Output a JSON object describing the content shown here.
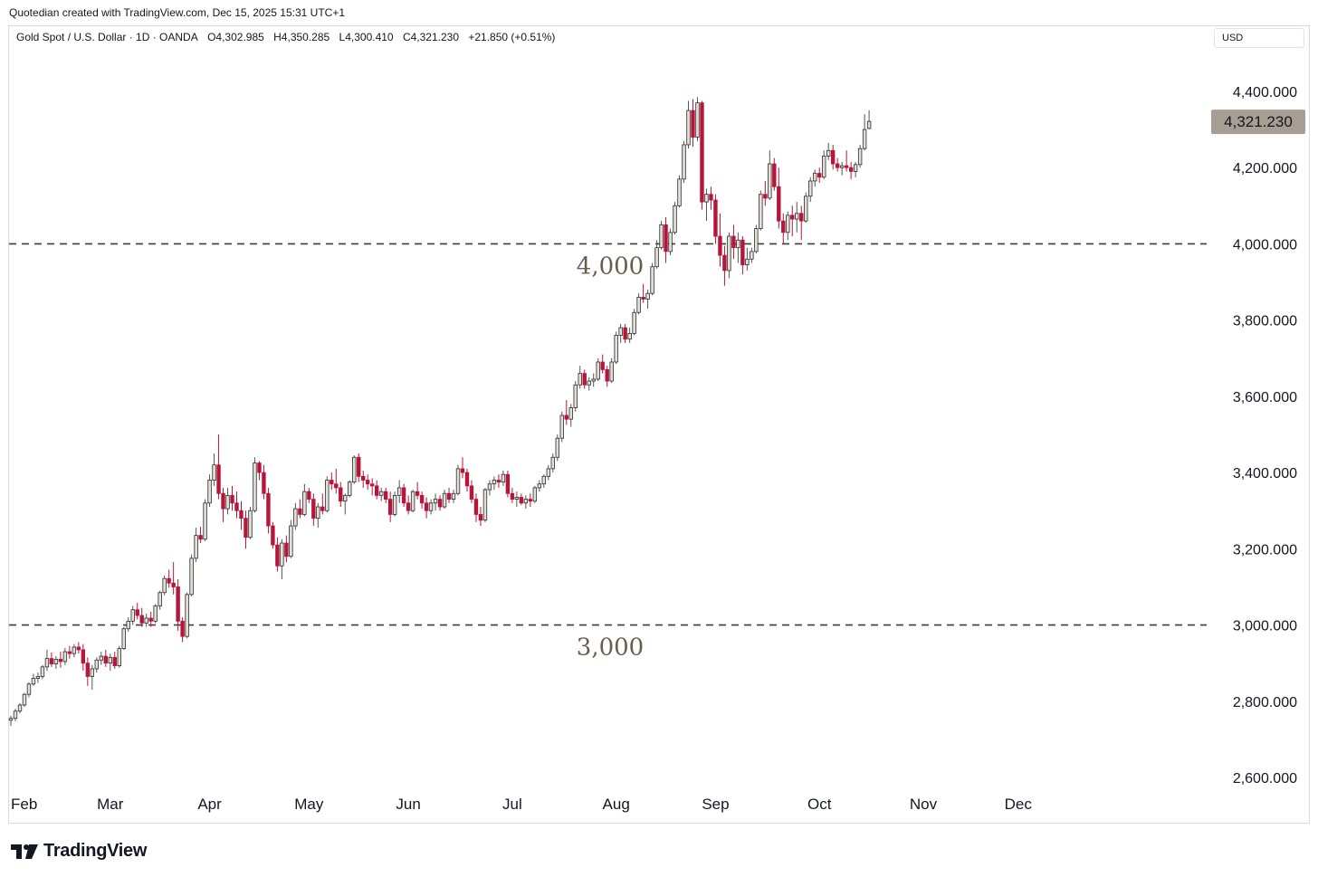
{
  "attribution": "Quotedian created with TradingView.com, Dec 15, 2025 15:31 UTC+1",
  "legend": {
    "symbol": "Gold Spot / U.S. Dollar · 1D · OANDA",
    "open": "O4,302.985",
    "high": "H4,350.285",
    "low": "L4,300.410",
    "close": "C4,321.230",
    "change": "+21.850 (+0.51%)"
  },
  "currency_label": "USD",
  "footer": {
    "brand": "TradingView",
    "logo_icon": "tradingview-logo-icon"
  },
  "colors": {
    "up_body": "#e4e0d8",
    "down_body": "#b8153a",
    "candle_border": "#2b2b2b",
    "level_line": "#3d3d3d",
    "level_text": "#6b5d4c",
    "price_badge": "#a79d92"
  },
  "chart_data": {
    "type": "candlestick",
    "title": "Gold Spot / U.S. Dollar",
    "ylim": [
      2550,
      4440
    ],
    "y_ticks": [
      "4,400.000",
      "4,200.000",
      "4,000.000",
      "3,800.000",
      "3,600.000",
      "3,400.000",
      "3,200.000",
      "3,000.000",
      "2,800.000",
      "2,600.000"
    ],
    "y_tick_values": [
      4400,
      4200,
      4000,
      3800,
      3600,
      3400,
      3200,
      3000,
      2800,
      2600
    ],
    "x_ticks": [
      "Feb",
      "Mar",
      "Apr",
      "May",
      "Jun",
      "Jul",
      "Aug",
      "Sep",
      "Oct",
      "Nov",
      "Dec"
    ],
    "x_tick_index": [
      2,
      22,
      44,
      66,
      88,
      111,
      134,
      156,
      179,
      202,
      223
    ],
    "levels": [
      {
        "value": 4000,
        "label": "4,000"
      },
      {
        "value": 3000,
        "label": "3,000"
      }
    ],
    "last_price": {
      "value": 4321.23,
      "label": "4,321.230"
    },
    "ohlc": [
      [
        2750,
        2762,
        2735,
        2755
      ],
      [
        2755,
        2780,
        2748,
        2774
      ],
      [
        2774,
        2795,
        2768,
        2790
      ],
      [
        2790,
        2822,
        2785,
        2818
      ],
      [
        2818,
        2850,
        2810,
        2845
      ],
      [
        2845,
        2872,
        2840,
        2860
      ],
      [
        2860,
        2875,
        2848,
        2865
      ],
      [
        2865,
        2895,
        2858,
        2890
      ],
      [
        2890,
        2935,
        2880,
        2912
      ],
      [
        2912,
        2928,
        2890,
        2898
      ],
      [
        2898,
        2918,
        2885,
        2910
      ],
      [
        2910,
        2930,
        2888,
        2904
      ],
      [
        2904,
        2940,
        2895,
        2930
      ],
      [
        2930,
        2945,
        2912,
        2925
      ],
      [
        2925,
        2950,
        2915,
        2942
      ],
      [
        2942,
        2955,
        2925,
        2935
      ],
      [
        2935,
        2950,
        2880,
        2900
      ],
      [
        2900,
        2915,
        2840,
        2865
      ],
      [
        2865,
        2895,
        2830,
        2885
      ],
      [
        2885,
        2915,
        2875,
        2908
      ],
      [
        2908,
        2930,
        2895,
        2918
      ],
      [
        2918,
        2935,
        2890,
        2900
      ],
      [
        2900,
        2925,
        2880,
        2915
      ],
      [
        2915,
        2930,
        2885,
        2893
      ],
      [
        2893,
        2945,
        2888,
        2938
      ],
      [
        2938,
        2995,
        2935,
        2990
      ],
      [
        2990,
        3020,
        2982,
        3010
      ],
      [
        3010,
        3050,
        3000,
        3040
      ],
      [
        3040,
        3058,
        3015,
        3025
      ],
      [
        3025,
        3045,
        2995,
        3005
      ],
      [
        3005,
        3030,
        2995,
        3018
      ],
      [
        3018,
        3035,
        2995,
        3010
      ],
      [
        3010,
        3055,
        3005,
        3050
      ],
      [
        3050,
        3090,
        3040,
        3085
      ],
      [
        3085,
        3130,
        3078,
        3122
      ],
      [
        3122,
        3145,
        3098,
        3110
      ],
      [
        3110,
        3165,
        3080,
        3100
      ],
      [
        3100,
        3120,
        2985,
        3010
      ],
      [
        3010,
        3020,
        2955,
        2970
      ],
      [
        2970,
        3085,
        2965,
        3080
      ],
      [
        3080,
        3185,
        3075,
        3175
      ],
      [
        3175,
        3255,
        3165,
        3235
      ],
      [
        3235,
        3258,
        3215,
        3225
      ],
      [
        3225,
        3330,
        3220,
        3320
      ],
      [
        3320,
        3395,
        3310,
        3380
      ],
      [
        3380,
        3450,
        3365,
        3420
      ],
      [
        3420,
        3500,
        3330,
        3345
      ],
      [
        3345,
        3360,
        3270,
        3305
      ],
      [
        3305,
        3360,
        3290,
        3340
      ],
      [
        3340,
        3365,
        3300,
        3320
      ],
      [
        3320,
        3350,
        3280,
        3300
      ],
      [
        3300,
        3325,
        3250,
        3280
      ],
      [
        3280,
        3300,
        3200,
        3230
      ],
      [
        3230,
        3310,
        3225,
        3300
      ],
      [
        3300,
        3440,
        3295,
        3425
      ],
      [
        3425,
        3430,
        3380,
        3400
      ],
      [
        3400,
        3420,
        3330,
        3345
      ],
      [
        3345,
        3360,
        3240,
        3260
      ],
      [
        3260,
        3270,
        3200,
        3210
      ],
      [
        3210,
        3230,
        3140,
        3155
      ],
      [
        3155,
        3225,
        3120,
        3215
      ],
      [
        3215,
        3235,
        3165,
        3180
      ],
      [
        3180,
        3275,
        3175,
        3260
      ],
      [
        3260,
        3320,
        3250,
        3305
      ],
      [
        3305,
        3330,
        3280,
        3290
      ],
      [
        3290,
        3370,
        3285,
        3350
      ],
      [
        3350,
        3360,
        3320,
        3330
      ],
      [
        3330,
        3345,
        3260,
        3280
      ],
      [
        3280,
        3320,
        3255,
        3310
      ],
      [
        3310,
        3345,
        3290,
        3300
      ],
      [
        3300,
        3390,
        3295,
        3380
      ],
      [
        3380,
        3400,
        3355,
        3370
      ],
      [
        3370,
        3410,
        3345,
        3360
      ],
      [
        3360,
        3375,
        3310,
        3325
      ],
      [
        3325,
        3345,
        3290,
        3340
      ],
      [
        3340,
        3380,
        3335,
        3375
      ],
      [
        3375,
        3445,
        3370,
        3440
      ],
      [
        3440,
        3450,
        3375,
        3390
      ],
      [
        3390,
        3405,
        3360,
        3380
      ],
      [
        3380,
        3395,
        3355,
        3370
      ],
      [
        3370,
        3385,
        3340,
        3365
      ],
      [
        3365,
        3380,
        3330,
        3340
      ],
      [
        3340,
        3360,
        3325,
        3350
      ],
      [
        3350,
        3360,
        3320,
        3330
      ],
      [
        3330,
        3350,
        3270,
        3290
      ],
      [
        3290,
        3350,
        3285,
        3340
      ],
      [
        3340,
        3380,
        3320,
        3360
      ],
      [
        3360,
        3370,
        3310,
        3320
      ],
      [
        3320,
        3340,
        3290,
        3300
      ],
      [
        3300,
        3355,
        3295,
        3350
      ],
      [
        3350,
        3375,
        3330,
        3340
      ],
      [
        3340,
        3350,
        3305,
        3320
      ],
      [
        3320,
        3335,
        3280,
        3300
      ],
      [
        3300,
        3330,
        3290,
        3320
      ],
      [
        3320,
        3345,
        3300,
        3330
      ],
      [
        3330,
        3340,
        3300,
        3310
      ],
      [
        3310,
        3355,
        3305,
        3345
      ],
      [
        3345,
        3360,
        3320,
        3330
      ],
      [
        3330,
        3355,
        3320,
        3345
      ],
      [
        3345,
        3420,
        3340,
        3410
      ],
      [
        3410,
        3440,
        3385,
        3400
      ],
      [
        3400,
        3410,
        3350,
        3365
      ],
      [
        3365,
        3380,
        3320,
        3330
      ],
      [
        3330,
        3345,
        3270,
        3290
      ],
      [
        3290,
        3310,
        3260,
        3275
      ],
      [
        3275,
        3360,
        3270,
        3355
      ],
      [
        3355,
        3380,
        3340,
        3370
      ],
      [
        3370,
        3390,
        3355,
        3380
      ],
      [
        3380,
        3395,
        3360,
        3375
      ],
      [
        3375,
        3405,
        3365,
        3395
      ],
      [
        3395,
        3405,
        3335,
        3345
      ],
      [
        3345,
        3360,
        3320,
        3330
      ],
      [
        3330,
        3350,
        3310,
        3335
      ],
      [
        3335,
        3345,
        3315,
        3320
      ],
      [
        3320,
        3340,
        3305,
        3330
      ],
      [
        3330,
        3345,
        3310,
        3325
      ],
      [
        3325,
        3365,
        3320,
        3360
      ],
      [
        3360,
        3380,
        3350,
        3370
      ],
      [
        3370,
        3395,
        3360,
        3390
      ],
      [
        3390,
        3420,
        3380,
        3410
      ],
      [
        3410,
        3450,
        3400,
        3440
      ],
      [
        3440,
        3500,
        3430,
        3490
      ],
      [
        3490,
        3560,
        3480,
        3550
      ],
      [
        3550,
        3590,
        3525,
        3540
      ],
      [
        3540,
        3580,
        3520,
        3570
      ],
      [
        3570,
        3640,
        3560,
        3630
      ],
      [
        3630,
        3680,
        3620,
        3660
      ],
      [
        3660,
        3670,
        3620,
        3630
      ],
      [
        3630,
        3650,
        3615,
        3640
      ],
      [
        3640,
        3660,
        3625,
        3645
      ],
      [
        3645,
        3700,
        3640,
        3690
      ],
      [
        3690,
        3710,
        3660,
        3670
      ],
      [
        3670,
        3680,
        3625,
        3640
      ],
      [
        3640,
        3700,
        3635,
        3690
      ],
      [
        3690,
        3770,
        3685,
        3760
      ],
      [
        3760,
        3790,
        3740,
        3780
      ],
      [
        3780,
        3790,
        3740,
        3750
      ],
      [
        3750,
        3780,
        3740,
        3765
      ],
      [
        3765,
        3830,
        3760,
        3820
      ],
      [
        3820,
        3870,
        3815,
        3860
      ],
      [
        3860,
        3895,
        3845,
        3855
      ],
      [
        3855,
        3880,
        3830,
        3870
      ],
      [
        3870,
        3950,
        3865,
        3940
      ],
      [
        3940,
        4010,
        3935,
        3990
      ],
      [
        3990,
        4060,
        3985,
        4050
      ],
      [
        4050,
        4070,
        3950,
        3980
      ],
      [
        3980,
        4040,
        3970,
        4030
      ],
      [
        4030,
        4110,
        4025,
        4100
      ],
      [
        4100,
        4180,
        4095,
        4170
      ],
      [
        4170,
        4270,
        4160,
        4260
      ],
      [
        4260,
        4375,
        4250,
        4350
      ],
      [
        4350,
        4380,
        4255,
        4280
      ],
      [
        4280,
        4385,
        4270,
        4370
      ],
      [
        4370,
        4375,
        4090,
        4110
      ],
      [
        4110,
        4145,
        4060,
        4130
      ],
      [
        4130,
        4150,
        4090,
        4115
      ],
      [
        4115,
        4130,
        4000,
        4020
      ],
      [
        4020,
        4080,
        3940,
        3970
      ],
      [
        3970,
        3995,
        3890,
        3930
      ],
      [
        3930,
        4030,
        3910,
        4020
      ],
      [
        4020,
        4050,
        3960,
        3990
      ],
      [
        3990,
        4030,
        3950,
        4010
      ],
      [
        4010,
        4020,
        3920,
        3945
      ],
      [
        3945,
        3990,
        3930,
        3960
      ],
      [
        3960,
        3990,
        3950,
        3980
      ],
      [
        3980,
        4050,
        3975,
        4040
      ],
      [
        4040,
        4140,
        4035,
        4130
      ],
      [
        4130,
        4165,
        4100,
        4120
      ],
      [
        4120,
        4245,
        4115,
        4210
      ],
      [
        4210,
        4225,
        4140,
        4150
      ],
      [
        4150,
        4200,
        4040,
        4060
      ],
      [
        4060,
        4080,
        4000,
        4030
      ],
      [
        4030,
        4085,
        4010,
        4075
      ],
      [
        4075,
        4100,
        4020,
        4065
      ],
      [
        4065,
        4110,
        4030,
        4080
      ],
      [
        4080,
        4100,
        4010,
        4060
      ],
      [
        4060,
        4135,
        4055,
        4125
      ],
      [
        4125,
        4175,
        4110,
        4165
      ],
      [
        4165,
        4195,
        4150,
        4185
      ],
      [
        4185,
        4200,
        4160,
        4175
      ],
      [
        4175,
        4245,
        4170,
        4230
      ],
      [
        4230,
        4265,
        4220,
        4245
      ],
      [
        4245,
        4260,
        4195,
        4210
      ],
      [
        4210,
        4225,
        4190,
        4200
      ],
      [
        4200,
        4215,
        4180,
        4205
      ],
      [
        4205,
        4245,
        4190,
        4200
      ],
      [
        4200,
        4215,
        4170,
        4190
      ],
      [
        4190,
        4215,
        4175,
        4208
      ],
      [
        4208,
        4260,
        4200,
        4250
      ],
      [
        4250,
        4340,
        4245,
        4300
      ],
      [
        4302.985,
        4350.285,
        4300.41,
        4321.23
      ]
    ]
  }
}
